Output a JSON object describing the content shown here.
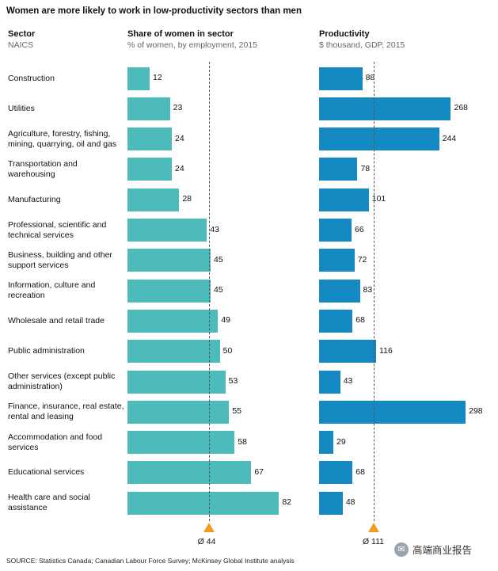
{
  "chart_data": {
    "type": "bar",
    "title": "Women are more likely to work in low-productivity sectors than men",
    "category_header": "Sector",
    "category_subheader": "NAICS",
    "categories": [
      "Construction",
      "Utilities",
      "Agriculture, forestry, fishing, mining, quarrying, oil and gas",
      "Transportation and warehousing",
      "Manufacturing",
      "Professional, scientific and technical services",
      "Business, building and other support services",
      "Information, culture and recreation",
      "Wholesale and retail trade",
      "Public administration",
      "Other services (except public administration)",
      "Finance, insurance, real estate, rental and leasing",
      "Accommodation and food services",
      "Educational services",
      "Health care and social assistance"
    ],
    "series": [
      {
        "name": "Share of women in sector",
        "subtitle": "% of women, by employment, 2015",
        "values": [
          12,
          23,
          24,
          24,
          28,
          43,
          45,
          45,
          49,
          50,
          53,
          55,
          58,
          67,
          82
        ],
        "average": 44,
        "average_label": "Ø 44",
        "xlim": [
          0,
          90
        ],
        "color": "#4dbabc"
      },
      {
        "name": "Productivity",
        "subtitle": "$ thousand, GDP, 2015",
        "values": [
          88,
          268,
          244,
          78,
          101,
          66,
          72,
          83,
          68,
          116,
          43,
          298,
          29,
          68,
          48
        ],
        "average": 111,
        "average_label": "Ø 111",
        "xlim": [
          0,
          330
        ],
        "color": "#1589c2"
      }
    ],
    "marker_color": "#f39c1f"
  },
  "source": "SOURCE:  Statistics Canada; Canadian Labour Force Survey; McKinsey Global Institute analysis",
  "watermark": {
    "icon": "wechat-logo-icon",
    "text": "高端商业报告"
  }
}
